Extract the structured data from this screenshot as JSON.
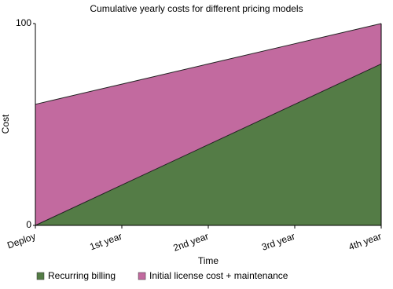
{
  "chart_data": {
    "type": "area",
    "title": "Cumulative yearly costs for different pricing models",
    "x_label": "Time",
    "y_label": "Cost",
    "categories": [
      "Deploy",
      "1st year",
      "2nd year",
      "3rd year",
      "4th year"
    ],
    "series": [
      {
        "name": "Recurring billing",
        "color": "#547c46",
        "values": [
          0,
          20,
          40,
          60,
          80
        ]
      },
      {
        "name": "Initial license cost + maintenance",
        "color": "#c26a9f",
        "values": [
          60,
          70,
          80,
          90,
          100
        ]
      }
    ],
    "ylim": [
      0,
      100
    ],
    "yticks": [
      0,
      100
    ]
  }
}
